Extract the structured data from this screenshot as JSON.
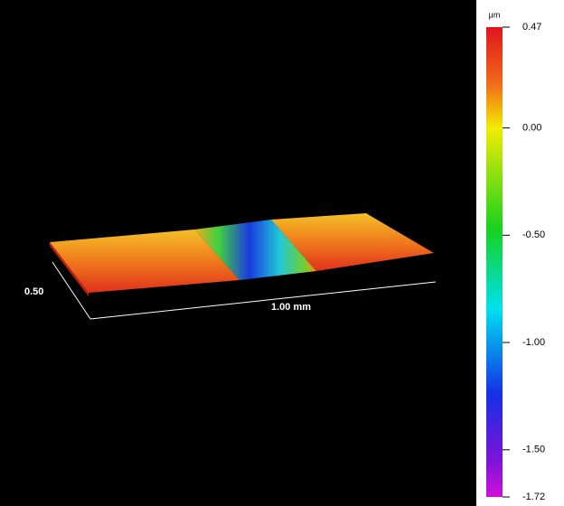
{
  "colorbar": {
    "unit": "µm",
    "lim": [
      -1.72,
      0.47
    ],
    "ticks": [
      {
        "value": 0.47,
        "label": "0.47"
      },
      {
        "value": 0,
        "label": "0.00"
      },
      {
        "value": -0.5,
        "label": "-0.50"
      },
      {
        "value": -1,
        "label": "-1.00"
      },
      {
        "value": -1.5,
        "label": "-1.50"
      },
      {
        "value": -1.72,
        "label": "-1.72"
      }
    ]
  },
  "axes": {
    "y_label": "0.50",
    "x_label": "1.00 mm"
  }
}
